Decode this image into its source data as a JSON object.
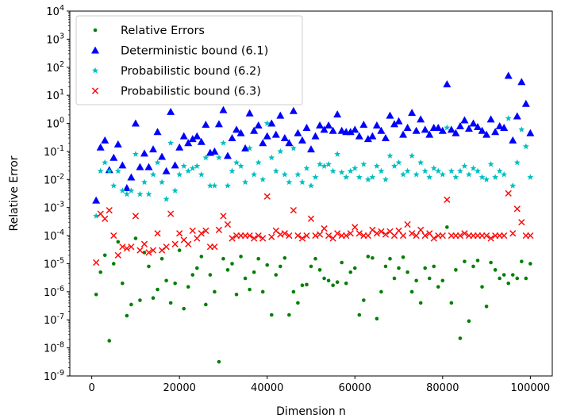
{
  "chart_data": {
    "type": "scatter",
    "title": "",
    "xlabel": "Dimension n",
    "ylabel": "Relative Error",
    "xlim": [
      -5000,
      105000
    ],
    "ylim": [
      1e-09,
      10000.0
    ],
    "yscale": "log",
    "grid": false,
    "legend_position": "top-left",
    "x_ticks": [
      {
        "value": 0,
        "label": "0"
      },
      {
        "value": 20000,
        "label": "20000"
      },
      {
        "value": 40000,
        "label": "40000"
      },
      {
        "value": 60000,
        "label": "60000"
      },
      {
        "value": 80000,
        "label": "80000"
      },
      {
        "value": 100000,
        "label": "100000"
      }
    ],
    "y_ticks": [
      {
        "exp": -9,
        "label": "10",
        "sup": "-9"
      },
      {
        "exp": -8,
        "label": "10",
        "sup": "-8"
      },
      {
        "exp": -7,
        "label": "10",
        "sup": "-7"
      },
      {
        "exp": -6,
        "label": "10",
        "sup": "-6"
      },
      {
        "exp": -5,
        "label": "10",
        "sup": "-5"
      },
      {
        "exp": -4,
        "label": "10",
        "sup": "-4"
      },
      {
        "exp": -3,
        "label": "10",
        "sup": "-3"
      },
      {
        "exp": -2,
        "label": "10",
        "sup": "-2"
      },
      {
        "exp": -1,
        "label": "10",
        "sup": "-1"
      },
      {
        "exp": 0,
        "label": "10",
        "sup": "0"
      },
      {
        "exp": 1,
        "label": "10",
        "sup": "1"
      },
      {
        "exp": 2,
        "label": "10",
        "sup": "2"
      },
      {
        "exp": 3,
        "label": "10",
        "sup": "3"
      },
      {
        "exp": 4,
        "label": "10",
        "sup": "4"
      }
    ],
    "series": [
      {
        "name": "Relative Errors",
        "marker": "dot",
        "color": "#008000",
        "x": [
          1000,
          2000,
          3000,
          4000,
          5000,
          6000,
          7000,
          8000,
          9000,
          10000,
          11000,
          12000,
          13000,
          14000,
          15000,
          16000,
          17000,
          18000,
          19000,
          20000,
          21000,
          22000,
          23000,
          24000,
          25000,
          26000,
          27000,
          28000,
          29000,
          30000,
          31000,
          32000,
          33000,
          34000,
          35000,
          36000,
          37000,
          38000,
          39000,
          40000,
          41000,
          42000,
          43000,
          44000,
          45000,
          46000,
          47000,
          48000,
          49000,
          50000,
          51000,
          52000,
          53000,
          54000,
          55000,
          56000,
          57000,
          58000,
          59000,
          60000,
          61000,
          62000,
          63000,
          64000,
          65000,
          66000,
          67000,
          68000,
          69000,
          70000,
          71000,
          72000,
          73000,
          74000,
          75000,
          76000,
          77000,
          78000,
          79000,
          80000,
          81000,
          82000,
          83000,
          84000,
          85000,
          86000,
          87000,
          88000,
          89000,
          90000,
          91000,
          92000,
          93000,
          94000,
          95000,
          96000,
          97000,
          98000,
          99000,
          100000
        ],
        "y": [
          8e-07,
          5e-06,
          2e-05,
          1.8e-08,
          1e-05,
          6e-05,
          2e-06,
          1.4e-07,
          3.5e-07,
          8e-05,
          5e-07,
          2.5e-05,
          8e-06,
          6e-07,
          1.2e-06,
          1.5e-05,
          2.5e-06,
          4e-07,
          2e-06,
          3e-05,
          2.5e-07,
          1.5e-06,
          4e-06,
          7e-06,
          1.8e-05,
          3.5e-07,
          4e-06,
          1e-06,
          3.2e-09,
          1.5e-05,
          6e-06,
          1e-05,
          8e-07,
          1.8e-05,
          3e-06,
          1.2e-06,
          5e-06,
          1.5e-05,
          1e-06,
          9e-06,
          1.5e-07,
          4e-06,
          8e-06,
          1.6e-05,
          1.5e-07,
          1e-06,
          4e-07,
          1.7e-06,
          1.8e-06,
          8e-06,
          1.5e-05,
          6e-06,
          3e-06,
          2.5e-06,
          1.7e-06,
          2.2e-06,
          1.1e-05,
          2e-06,
          5e-06,
          7e-06,
          1.5e-07,
          5e-07,
          1.8e-05,
          1.6e-05,
          1.1e-07,
          1e-06,
          8e-06,
          1.5e-05,
          3e-06,
          7e-06,
          1.7e-05,
          5e-06,
          1e-06,
          2.5e-06,
          4e-07,
          7e-06,
          3e-06,
          8e-06,
          1.5e-06,
          2.5e-06,
          0.0002,
          4e-07,
          6e-06,
          2.2e-08,
          1.2e-05,
          9e-08,
          8e-06,
          1.3e-05,
          1.5e-06,
          3e-07,
          1.1e-05,
          6e-06,
          3e-06,
          4e-06,
          2e-06,
          4e-06,
          3e-06,
          1.2e-05,
          3e-06,
          1e-05
        ]
      },
      {
        "name": "Deterministic bound (6.1)",
        "marker": "triangle",
        "color": "#0000ff",
        "x": [
          1000,
          2000,
          3000,
          4000,
          5000,
          6000,
          7000,
          8000,
          9000,
          10000,
          11000,
          12000,
          13000,
          14000,
          15000,
          16000,
          17000,
          18000,
          19000,
          20000,
          21000,
          22000,
          23000,
          24000,
          25000,
          26000,
          27000,
          28000,
          29000,
          30000,
          31000,
          32000,
          33000,
          34000,
          35000,
          36000,
          37000,
          38000,
          39000,
          40000,
          41000,
          42000,
          43000,
          44000,
          45000,
          46000,
          47000,
          48000,
          49000,
          50000,
          51000,
          52000,
          53000,
          54000,
          55000,
          56000,
          57000,
          58000,
          59000,
          60000,
          61000,
          62000,
          63000,
          64000,
          65000,
          66000,
          67000,
          68000,
          69000,
          70000,
          71000,
          72000,
          73000,
          74000,
          75000,
          76000,
          77000,
          78000,
          79000,
          80000,
          81000,
          82000,
          83000,
          84000,
          85000,
          86000,
          87000,
          88000,
          89000,
          90000,
          91000,
          92000,
          93000,
          94000,
          95000,
          96000,
          97000,
          98000,
          99000,
          100000
        ],
        "y": [
          0.0018,
          0.14,
          0.25,
          0.022,
          0.06,
          0.18,
          0.032,
          0.005,
          0.012,
          1.0,
          0.028,
          0.085,
          0.028,
          0.12,
          0.5,
          0.065,
          0.02,
          2.6,
          0.032,
          0.14,
          0.35,
          0.2,
          0.28,
          0.35,
          0.22,
          0.9,
          0.09,
          0.1,
          0.95,
          3.0,
          0.07,
          0.3,
          0.6,
          0.45,
          0.13,
          2.3,
          0.55,
          0.85,
          0.2,
          0.35,
          1.0,
          0.4,
          1.9,
          0.3,
          0.2,
          2.8,
          0.45,
          0.25,
          0.7,
          0.12,
          0.35,
          0.85,
          0.6,
          0.85,
          0.55,
          2.1,
          0.55,
          0.5,
          0.5,
          0.6,
          0.35,
          0.9,
          0.28,
          0.35,
          0.85,
          0.55,
          0.3,
          1.9,
          0.95,
          1.2,
          0.4,
          0.7,
          2.4,
          0.55,
          1.4,
          0.6,
          0.4,
          0.7,
          0.7,
          0.55,
          25.0,
          0.6,
          0.45,
          0.8,
          1.3,
          0.65,
          1.0,
          0.75,
          0.55,
          0.4,
          1.4,
          0.5,
          0.8,
          0.7,
          50.0,
          0.25,
          1.8,
          30.0,
          5.0,
          0.45
        ]
      },
      {
        "name": "Probabilistic bound (6.2)",
        "marker": "star",
        "color": "#00bfbf",
        "x": [
          1000,
          2000,
          3000,
          4000,
          5000,
          6000,
          7000,
          8000,
          9000,
          10000,
          11000,
          12000,
          13000,
          14000,
          15000,
          16000,
          17000,
          18000,
          19000,
          20000,
          21000,
          22000,
          23000,
          24000,
          25000,
          26000,
          27000,
          28000,
          29000,
          30000,
          31000,
          32000,
          33000,
          34000,
          35000,
          36000,
          37000,
          38000,
          39000,
          40000,
          41000,
          42000,
          43000,
          44000,
          45000,
          46000,
          47000,
          48000,
          49000,
          50000,
          51000,
          52000,
          53000,
          54000,
          55000,
          56000,
          57000,
          58000,
          59000,
          60000,
          61000,
          62000,
          63000,
          64000,
          65000,
          66000,
          67000,
          68000,
          69000,
          70000,
          71000,
          72000,
          73000,
          74000,
          75000,
          76000,
          77000,
          78000,
          79000,
          80000,
          81000,
          82000,
          83000,
          84000,
          85000,
          86000,
          87000,
          88000,
          89000,
          90000,
          91000,
          92000,
          93000,
          94000,
          95000,
          96000,
          97000,
          98000,
          99000,
          100000
        ],
        "y": [
          0.0005,
          0.02,
          0.04,
          0.02,
          0.006,
          0.02,
          0.004,
          0.003,
          0.004,
          0.08,
          0.003,
          0.008,
          0.003,
          0.015,
          0.04,
          0.008,
          0.002,
          0.2,
          0.004,
          0.015,
          0.03,
          0.02,
          0.025,
          0.03,
          0.015,
          0.06,
          0.006,
          0.006,
          0.06,
          0.2,
          0.006,
          0.02,
          0.04,
          0.03,
          0.008,
          0.13,
          0.015,
          0.04,
          0.01,
          1.0,
          0.06,
          0.02,
          0.1,
          0.015,
          0.008,
          0.13,
          0.015,
          0.008,
          0.025,
          0.006,
          0.012,
          0.035,
          0.03,
          0.035,
          0.02,
          0.08,
          0.018,
          0.012,
          0.02,
          0.025,
          0.012,
          0.035,
          0.01,
          0.012,
          0.03,
          0.02,
          0.01,
          0.07,
          0.03,
          0.04,
          0.015,
          0.02,
          0.07,
          0.015,
          0.04,
          0.02,
          0.012,
          0.025,
          0.02,
          0.015,
          0.7,
          0.02,
          0.012,
          0.02,
          0.03,
          0.015,
          0.025,
          0.02,
          0.012,
          0.01,
          0.035,
          0.012,
          0.02,
          0.015,
          1.5,
          0.006,
          0.04,
          0.6,
          0.15,
          0.012
        ]
      },
      {
        "name": "Probabilistic bound (6.3)",
        "marker": "cross",
        "color": "#ff0000",
        "x": [
          1000,
          2000,
          3000,
          4000,
          5000,
          6000,
          7000,
          8000,
          9000,
          10000,
          11000,
          12000,
          13000,
          14000,
          15000,
          16000,
          17000,
          18000,
          19000,
          20000,
          21000,
          22000,
          23000,
          24000,
          25000,
          26000,
          27000,
          28000,
          29000,
          30000,
          31000,
          32000,
          33000,
          34000,
          35000,
          36000,
          37000,
          38000,
          39000,
          40000,
          41000,
          42000,
          43000,
          44000,
          45000,
          46000,
          47000,
          48000,
          49000,
          50000,
          51000,
          52000,
          53000,
          54000,
          55000,
          56000,
          57000,
          58000,
          59000,
          60000,
          61000,
          62000,
          63000,
          64000,
          65000,
          66000,
          67000,
          68000,
          69000,
          70000,
          71000,
          72000,
          73000,
          74000,
          75000,
          76000,
          77000,
          78000,
          79000,
          80000,
          81000,
          82000,
          83000,
          84000,
          85000,
          86000,
          87000,
          88000,
          89000,
          90000,
          91000,
          92000,
          93000,
          94000,
          95000,
          96000,
          97000,
          98000,
          99000,
          100000
        ],
        "y": [
          1.1e-05,
          0.0006,
          0.0004,
          0.0008,
          0.0001,
          2e-05,
          4e-05,
          3.5e-05,
          4e-05,
          0.0005,
          3e-05,
          5e-05,
          2.5e-05,
          3e-05,
          0.00012,
          3e-05,
          4e-05,
          0.0006,
          5e-05,
          0.00012,
          7e-05,
          5e-05,
          0.00015,
          8e-05,
          0.00012,
          0.00015,
          4e-05,
          4e-05,
          0.00016,
          0.0005,
          0.00025,
          8e-05,
          0.0001,
          0.0001,
          0.0001,
          0.0001,
          8e-05,
          0.0001,
          8e-05,
          0.0025,
          9e-05,
          0.00015,
          0.00011,
          0.00012,
          0.0001,
          0.0008,
          0.0001,
          8e-05,
          0.0001,
          0.0004,
          0.0001,
          0.00011,
          0.00018,
          0.0001,
          8e-05,
          0.00012,
          0.0001,
          0.0001,
          0.00012,
          0.0002,
          0.00012,
          0.0001,
          0.0001,
          0.00016,
          0.00012,
          0.00014,
          0.00011,
          0.00014,
          0.0001,
          0.00015,
          0.0001,
          0.00025,
          0.00012,
          0.0001,
          0.00016,
          0.0001,
          0.00012,
          8e-05,
          0.0001,
          0.0001,
          0.0019,
          0.0001,
          0.0001,
          0.0001,
          0.00012,
          0.0001,
          0.0001,
          0.0001,
          0.0001,
          0.0001,
          8e-05,
          0.0001,
          0.0001,
          0.0001,
          0.0032,
          0.00012,
          0.0009,
          0.0003,
          0.0001,
          0.0001
        ]
      }
    ]
  }
}
